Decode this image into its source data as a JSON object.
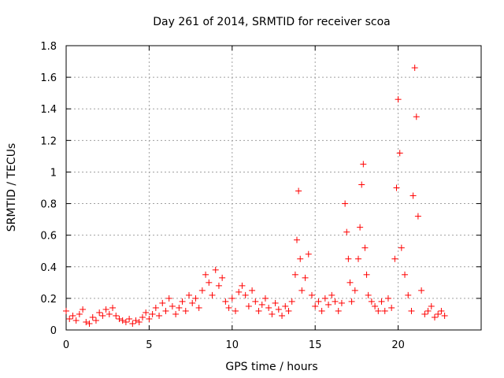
{
  "chart_data": {
    "type": "scatter",
    "title": "Day 261 of 2014, SRMTID for receiver scoa",
    "xlabel": "GPS time / hours",
    "ylabel": "SRMTID / TECUs",
    "xlim": [
      0,
      25
    ],
    "ylim": [
      0,
      1.8
    ],
    "x_ticks": [
      0,
      5,
      10,
      15,
      20
    ],
    "y_ticks": [
      0,
      0.2,
      0.4,
      0.6,
      0.8,
      1,
      1.2,
      1.4,
      1.6,
      1.8
    ],
    "x_tick_labels": [
      "0",
      "5",
      "10",
      "15",
      "20"
    ],
    "y_tick_labels": [
      "0",
      "0.2",
      "0.4",
      "0.6",
      "0.8",
      "1",
      "1.2",
      "1.4",
      "1.6",
      "1.8"
    ],
    "grid": true,
    "marker": "+",
    "series": [
      {
        "name": "SRMTID",
        "color": "#ff0000",
        "x": [
          0.0,
          0.2,
          0.4,
          0.6,
          0.8,
          1.0,
          1.2,
          1.4,
          1.6,
          1.8,
          2.0,
          2.2,
          2.4,
          2.6,
          2.8,
          3.0,
          3.2,
          3.4,
          3.6,
          3.8,
          4.0,
          4.2,
          4.4,
          4.6,
          4.8,
          5.0,
          5.2,
          5.4,
          5.6,
          5.8,
          6.0,
          6.2,
          6.4,
          6.6,
          6.8,
          7.0,
          7.2,
          7.4,
          7.6,
          7.8,
          8.0,
          8.2,
          8.4,
          8.6,
          8.8,
          9.0,
          9.2,
          9.4,
          9.6,
          9.8,
          10.0,
          10.2,
          10.4,
          10.6,
          10.8,
          11.0,
          11.2,
          11.4,
          11.6,
          11.8,
          12.0,
          12.2,
          12.4,
          12.6,
          12.8,
          13.0,
          13.2,
          13.4,
          13.6,
          13.8,
          13.9,
          14.0,
          14.1,
          14.2,
          14.4,
          14.6,
          14.8,
          15.0,
          15.2,
          15.4,
          15.6,
          15.8,
          16.0,
          16.2,
          16.4,
          16.6,
          16.8,
          16.9,
          17.0,
          17.1,
          17.2,
          17.4,
          17.6,
          17.7,
          17.8,
          17.9,
          18.0,
          18.1,
          18.2,
          18.4,
          18.6,
          18.8,
          19.0,
          19.2,
          19.4,
          19.6,
          19.8,
          19.9,
          20.0,
          20.1,
          20.2,
          20.4,
          20.6,
          20.8,
          20.9,
          21.0,
          21.1,
          21.2,
          21.4,
          21.6,
          21.8,
          22.0,
          22.2,
          22.4,
          22.6,
          22.8
        ],
        "y": [
          0.12,
          0.07,
          0.09,
          0.06,
          0.1,
          0.13,
          0.05,
          0.04,
          0.08,
          0.06,
          0.11,
          0.09,
          0.13,
          0.1,
          0.14,
          0.09,
          0.07,
          0.06,
          0.05,
          0.07,
          0.04,
          0.06,
          0.05,
          0.08,
          0.11,
          0.07,
          0.1,
          0.14,
          0.09,
          0.17,
          0.12,
          0.2,
          0.15,
          0.1,
          0.14,
          0.18,
          0.12,
          0.22,
          0.17,
          0.2,
          0.14,
          0.25,
          0.35,
          0.3,
          0.22,
          0.38,
          0.28,
          0.33,
          0.18,
          0.14,
          0.2,
          0.12,
          0.24,
          0.28,
          0.22,
          0.15,
          0.25,
          0.18,
          0.12,
          0.16,
          0.2,
          0.14,
          0.1,
          0.17,
          0.13,
          0.09,
          0.15,
          0.12,
          0.18,
          0.35,
          0.57,
          0.88,
          0.45,
          0.25,
          0.33,
          0.48,
          0.22,
          0.15,
          0.18,
          0.12,
          0.2,
          0.16,
          0.22,
          0.18,
          0.12,
          0.17,
          0.8,
          0.62,
          0.45,
          0.3,
          0.18,
          0.25,
          0.45,
          0.65,
          0.92,
          1.05,
          0.52,
          0.35,
          0.22,
          0.18,
          0.15,
          0.12,
          0.18,
          0.12,
          0.2,
          0.14,
          0.45,
          0.9,
          1.46,
          1.12,
          0.52,
          0.35,
          0.22,
          0.12,
          0.85,
          1.66,
          1.35,
          0.72,
          0.25,
          0.1,
          0.12,
          0.15,
          0.08,
          0.1,
          0.12,
          0.09
        ]
      }
    ]
  }
}
